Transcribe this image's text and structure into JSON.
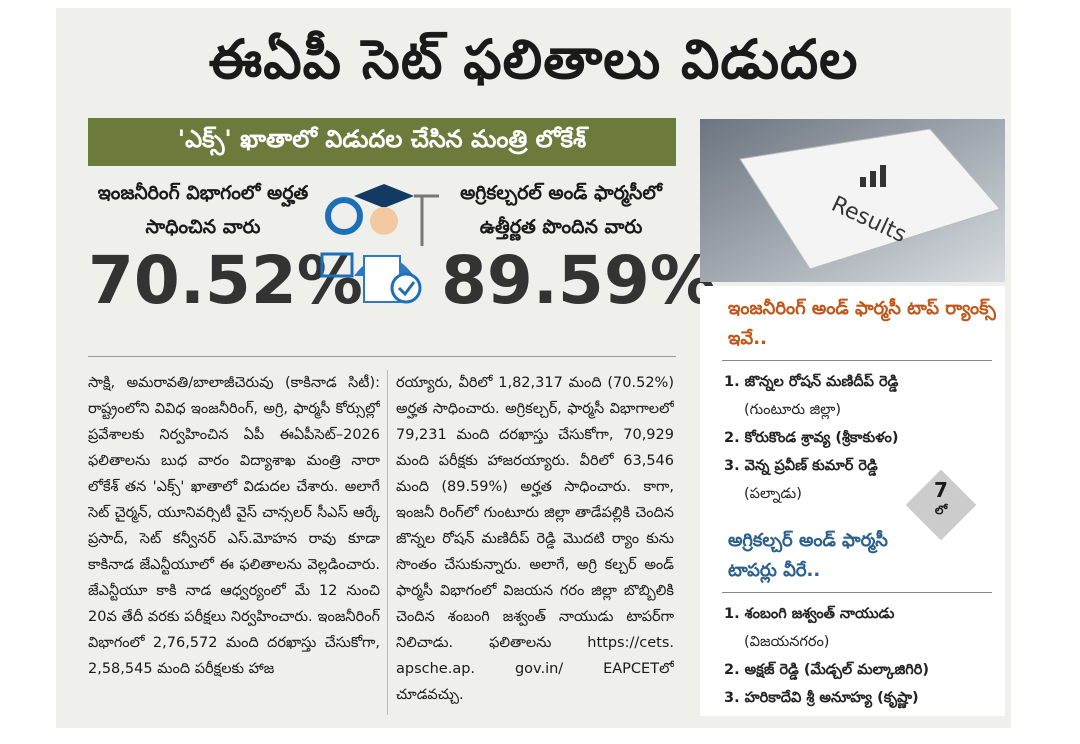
{
  "header": {
    "title": "ఈఏపీ సెట్ ఫలితాలు విడుదల",
    "banner": "'ఎక్స్' ఖాతాలో విడుదల చేసిన మంత్రి లోకేశ్"
  },
  "stats": [
    {
      "label": "ఇంజనీరింగ్ విభాగంలో అర్హత సాధించిన వారు",
      "value": "70.52%"
    },
    {
      "label": "అగ్రికల్చరల్ అండ్ ఫార్మసీలో ఉత్తీర్ణత పొందిన వారు",
      "value": "89.59%"
    }
  ],
  "body": {
    "columns": [
      "సాక్షి, అమరావతి/బాలాజీచెరువు (కాకినాడ సిటీ): రాష్ట్రంలోని వివిధ ఇంజనీరింగ్, అగ్రి, ఫార్మసీ కోర్సుల్లో ప్రవేశాలకు నిర్వహించిన ఏపీ ఈఏపీసెట్–2026 ఫలితాలను బుధ వారం విద్యాశాఖ మంత్రి నారా లోకేశ్ తన 'ఎక్స్' ఖాతాలో విడుదల చేశారు. అలాగే సెట్ చైర్మన్, యూనివర్సిటీ వైస్ చాన్సలర్ సీఎస్ ఆర్కే ప్రసాద్, సెట్ కన్వీనర్ ఎస్.మోహన రావు కూడా కాకినాడ జేఎన్టీయూలో ఈ ఫలితాలను వెల్లడించారు. జేఎన్టీయూ కాకి నాడ ఆధ్వర్యంలో మే 12 నుంచి 20వ తేదీ వరకు పరీక్షలు నిర్వహించారు. ఇంజనీరింగ్ విభాగంలో 2,76,572 మంది దరఖాస్తు చేసుకోగా, 2,58,545 మంది పరీక్షలకు హాజ",
      "రయ్యారు, వీరిలో 1,82,317 మంది (70.52%) అర్హత సాధించారు. అగ్రికల్చర్, ఫార్మసీ విభాగాలలో 79,231 మంది దరఖాస్తు చేసుకోగా, 70,929 మంది పరీక్షకు హాజరయ్యారు. వీరిలో 63,546 మంది (89.59%) అర్హత సాధించారు. కాగా, ఇంజనీ రింగ్‌లో గుంటూరు జిల్లా తాడేపల్లికి చెందిన జొన్నల రోషన్ మణిదీప్ రెడ్డి మొదటి ర్యాం కును సొంతం చేసుకున్నారు. అలాగే, అగ్రి కల్చర్ అండ్ ఫార్మసీ విభాగంలో విజయన గరం జిల్లా బొబ్బిలికి చెందిన శంబంగి జశ్వంత్ నాయుడు టాపర్‌గా నిలిచాడు. ఫలితాలను https://cets. apsche.ap. gov.in/ EAPCETలో చూడవచ్చు."
    ]
  },
  "photo": {
    "key_label": "Results"
  },
  "sidebar": {
    "sections": [
      {
        "heading": "ఇంజనీరింగ్ అండ్ ఫార్మసీ టాప్ ర్యాంక్స్ ఇవే..",
        "items": [
          {
            "name": "1. జొన్నల రోషన్ మణిదీప్ రెడ్డి",
            "place": "(గుంటూరు జిల్లా)"
          },
          {
            "name": "2. కోరుకొండ శ్రావ్య (శ్రీకాకుళం)"
          },
          {
            "name": "3. వెన్న ప్రవీణ్ కుమార్ రెడ్డి",
            "place": "(పల్నాడు)"
          }
        ]
      },
      {
        "heading": "అగ్రికల్చర్ అండ్ ఫార్మసీ టాపర్లు వీరే..",
        "items": [
          {
            "name": "1. శంబంగి జశ్వంత్ నాయుడు",
            "place": "(విజయనగరం)"
          },
          {
            "name": "2. అక్షజ్ రెడ్డి (మేడ్చల్ మల్కాజిగిరి)"
          },
          {
            "name": "3. హరికాదేవి శ్రీ అనూహ్య (కృష్ణా)"
          }
        ]
      }
    ],
    "badge": {
      "number": "7",
      "suffix": "లో"
    }
  }
}
